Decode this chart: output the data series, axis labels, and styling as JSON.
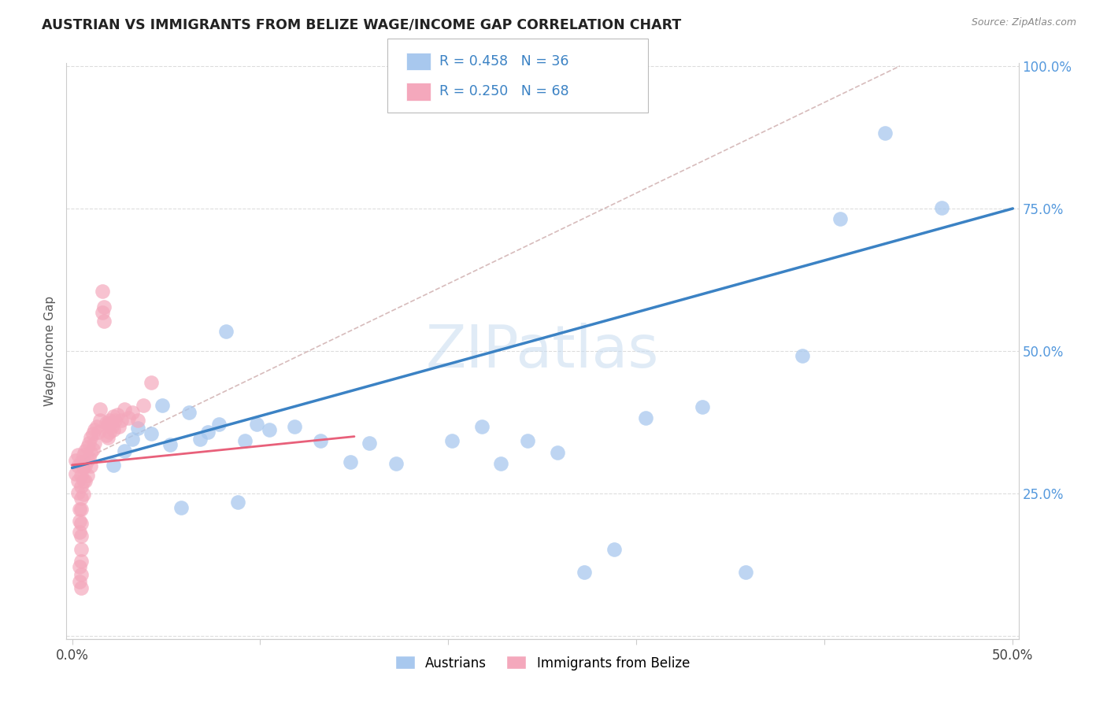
{
  "title": "AUSTRIAN VS IMMIGRANTS FROM BELIZE WAGE/INCOME GAP CORRELATION CHART",
  "source": "Source: ZipAtlas.com",
  "ylabel": "Wage/Income Gap",
  "watermark": "ZIPatlas",
  "blue_R": 0.458,
  "blue_N": 36,
  "pink_R": 0.25,
  "pink_N": 68,
  "blue_color": "#A8C8EE",
  "pink_color": "#F4A8BC",
  "blue_line_color": "#3B82C4",
  "pink_line_color": "#E8607A",
  "dash_color": "#D0B0B0",
  "xlim": [
    -0.003,
    0.503
  ],
  "ylim": [
    -0.005,
    1.005
  ],
  "blue_x": [
    0.022,
    0.028,
    0.032,
    0.035,
    0.042,
    0.048,
    0.052,
    0.058,
    0.062,
    0.068,
    0.072,
    0.078,
    0.082,
    0.088,
    0.092,
    0.098,
    0.105,
    0.118,
    0.132,
    0.148,
    0.158,
    0.172,
    0.202,
    0.218,
    0.228,
    0.242,
    0.258,
    0.272,
    0.288,
    0.305,
    0.335,
    0.358,
    0.388,
    0.408,
    0.432,
    0.462
  ],
  "blue_y": [
    0.3,
    0.325,
    0.345,
    0.365,
    0.355,
    0.405,
    0.335,
    0.225,
    0.392,
    0.345,
    0.358,
    0.372,
    0.535,
    0.235,
    0.342,
    0.372,
    0.362,
    0.368,
    0.342,
    0.305,
    0.338,
    0.302,
    0.342,
    0.368,
    0.302,
    0.342,
    0.322,
    0.112,
    0.152,
    0.382,
    0.402,
    0.112,
    0.492,
    0.732,
    0.882,
    0.752
  ],
  "pink_x": [
    0.002,
    0.002,
    0.003,
    0.003,
    0.003,
    0.003,
    0.004,
    0.004,
    0.004,
    0.004,
    0.004,
    0.005,
    0.005,
    0.005,
    0.005,
    0.005,
    0.005,
    0.005,
    0.005,
    0.005,
    0.005,
    0.005,
    0.006,
    0.006,
    0.006,
    0.006,
    0.007,
    0.007,
    0.007,
    0.008,
    0.008,
    0.008,
    0.009,
    0.009,
    0.01,
    0.01,
    0.01,
    0.011,
    0.011,
    0.012,
    0.012,
    0.013,
    0.014,
    0.015,
    0.015,
    0.016,
    0.016,
    0.017,
    0.017,
    0.018,
    0.018,
    0.019,
    0.019,
    0.02,
    0.02,
    0.021,
    0.022,
    0.022,
    0.023,
    0.024,
    0.025,
    0.026,
    0.028,
    0.03,
    0.032,
    0.035,
    0.038,
    0.042
  ],
  "pink_y": [
    0.308,
    0.285,
    0.318,
    0.298,
    0.272,
    0.252,
    0.222,
    0.202,
    0.182,
    0.122,
    0.095,
    0.305,
    0.282,
    0.262,
    0.242,
    0.222,
    0.198,
    0.175,
    0.152,
    0.132,
    0.108,
    0.085,
    0.318,
    0.295,
    0.272,
    0.248,
    0.325,
    0.298,
    0.272,
    0.332,
    0.308,
    0.282,
    0.338,
    0.312,
    0.348,
    0.322,
    0.298,
    0.355,
    0.328,
    0.362,
    0.338,
    0.368,
    0.358,
    0.378,
    0.398,
    0.568,
    0.605,
    0.552,
    0.578,
    0.375,
    0.352,
    0.372,
    0.348,
    0.378,
    0.358,
    0.368,
    0.385,
    0.362,
    0.378,
    0.388,
    0.368,
    0.378,
    0.398,
    0.382,
    0.392,
    0.378,
    0.405,
    0.445
  ]
}
